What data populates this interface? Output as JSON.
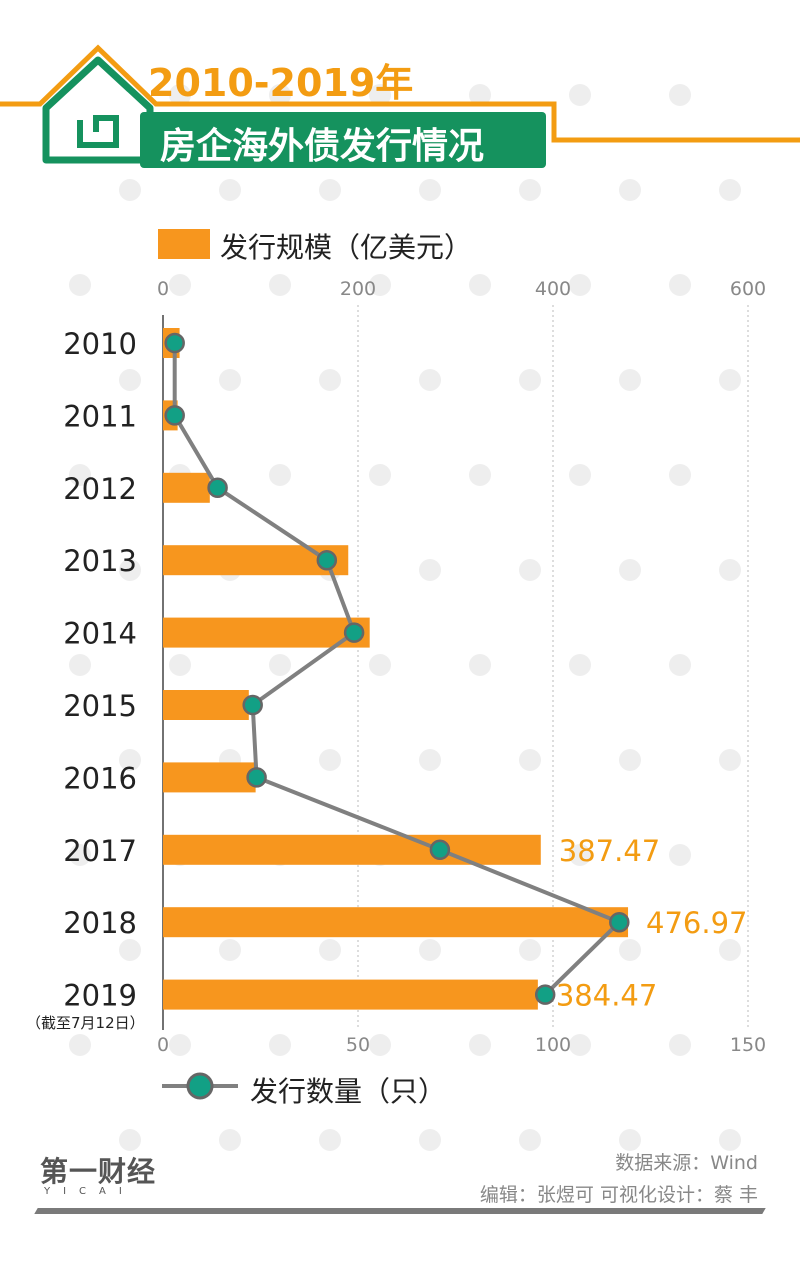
{
  "header": {
    "year_range": "2010-2019年",
    "title": "房企海外债发行情况"
  },
  "legend": {
    "bar_label": "发行规模（亿美元）",
    "line_label": "发行数量（只）"
  },
  "footnote": "（截至7月12日）",
  "source": "数据来源：Wind",
  "credit": "编辑：张煜可   可视化设计：蔡 丰",
  "brand": {
    "name": "第一财经",
    "latin": "YICAI"
  },
  "colors": {
    "bar": "#f7961e",
    "line": "#808080",
    "marker": "#12a085",
    "accent_orange": "#f39c12",
    "title_green": "#15925e"
  },
  "chart_data": {
    "type": "bar",
    "orientation": "horizontal",
    "categories": [
      "2010",
      "2011",
      "2012",
      "2013",
      "2014",
      "2015",
      "2016",
      "2017",
      "2018",
      "2019"
    ],
    "series": [
      {
        "name": "发行规模（亿美元）",
        "type": "bar",
        "axis": "top",
        "values": [
          17,
          15,
          48,
          190,
          212,
          88,
          95,
          387.47,
          476.97,
          384.47
        ]
      },
      {
        "name": "发行数量（只）",
        "type": "line",
        "axis": "bottom",
        "values": [
          3,
          3,
          14,
          42,
          49,
          23,
          24,
          71,
          117,
          98
        ]
      }
    ],
    "data_labels": [
      "",
      "",
      "",
      "",
      "",
      "",
      "",
      "387.47",
      "476.97",
      "384.47"
    ],
    "top_axis": {
      "range": [
        0,
        600
      ],
      "ticks": [
        "0",
        "200",
        "400",
        "600"
      ]
    },
    "bottom_axis": {
      "range": [
        0,
        150
      ],
      "ticks": [
        "0",
        "50",
        "100",
        "150"
      ]
    },
    "grid": true,
    "legend_position": "top and bottom"
  }
}
